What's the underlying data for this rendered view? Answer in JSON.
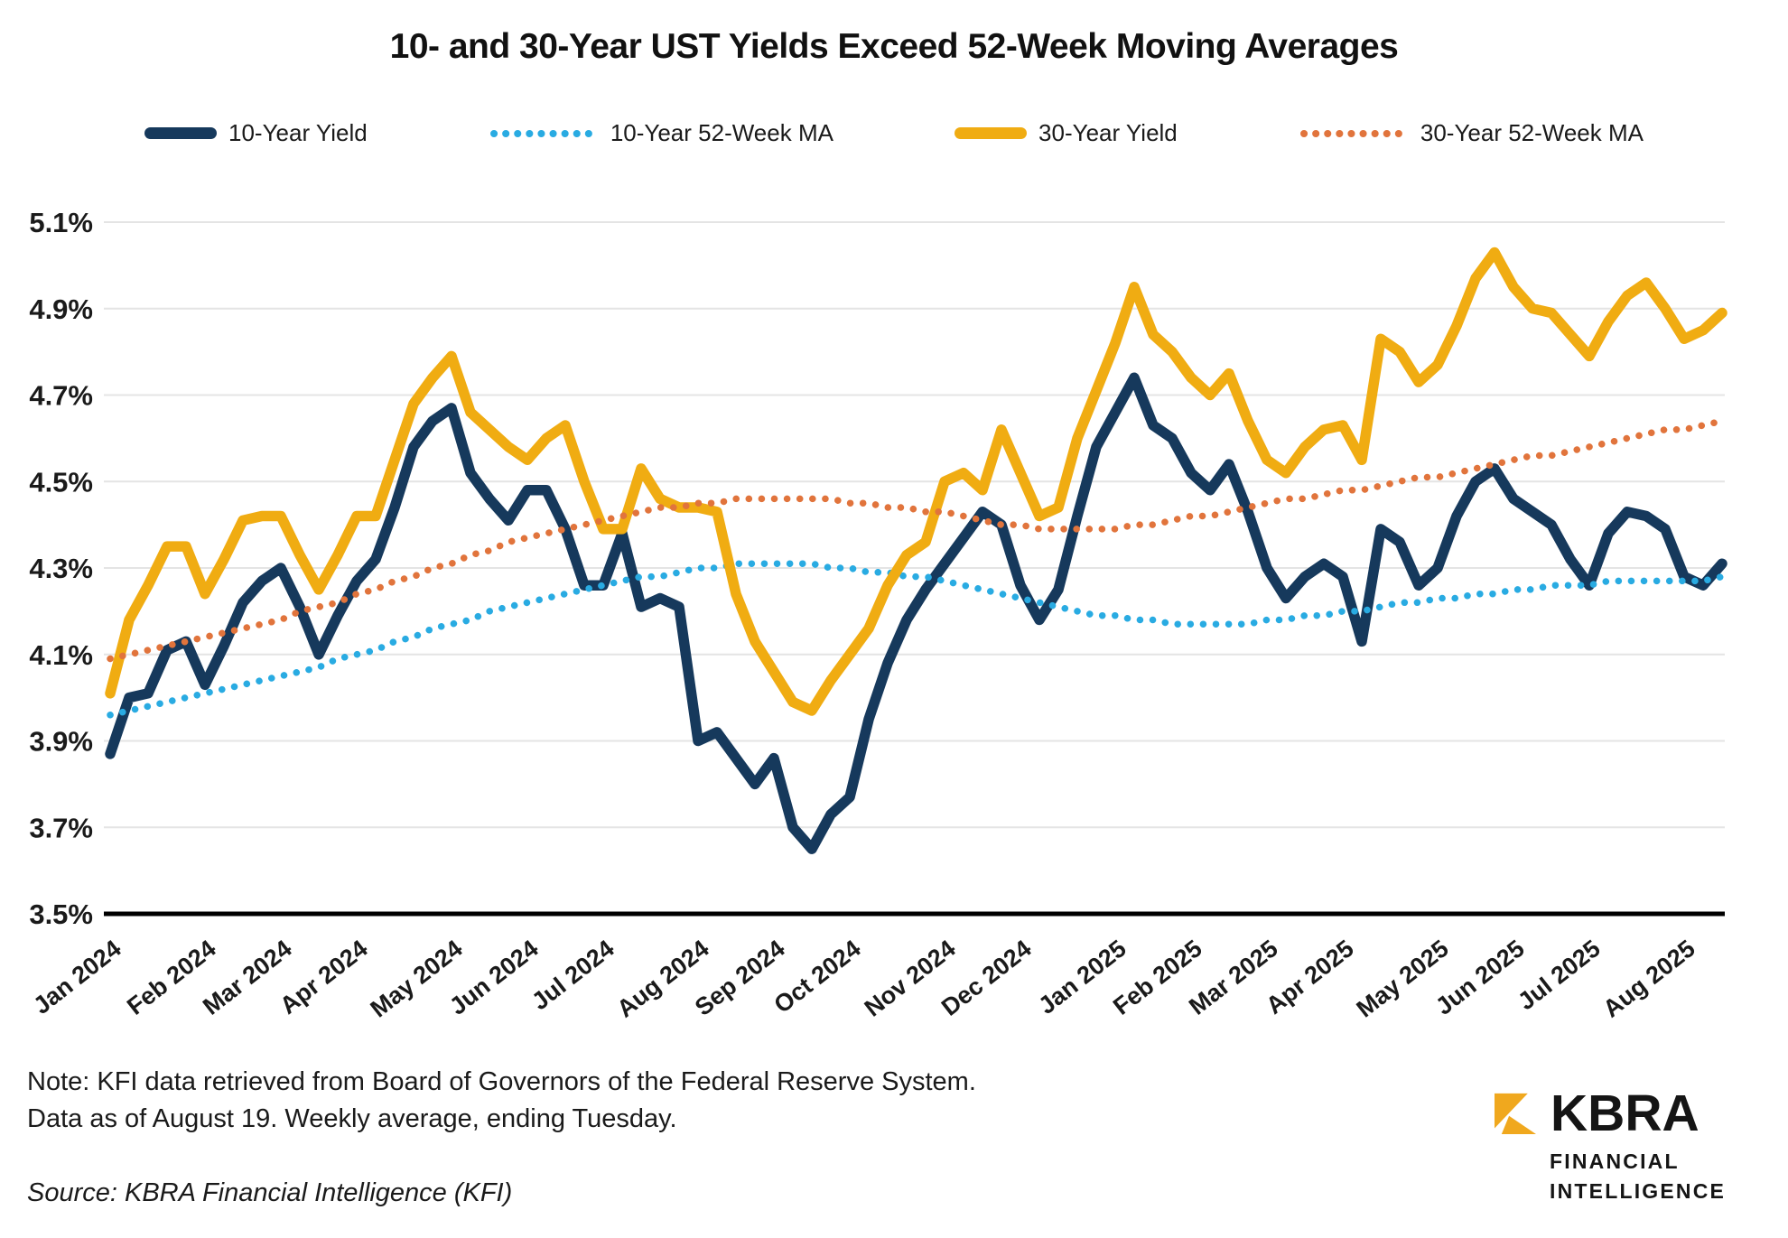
{
  "title": "10- and 30-Year UST Yields Exceed 52-Week Moving Averages",
  "footer": {
    "note_line1": "Note: KFI data retrieved from Board of Governors of the Federal Reserve System.",
    "note_line2": "Data as of August 19. Weekly average, ending Tuesday.",
    "source": "Source: KBRA Financial Intelligence (KFI)"
  },
  "logo": {
    "name": "KBRA",
    "line1": "FINANCIAL",
    "line2": "INTELLIGENCE",
    "color": "#F0A81E"
  },
  "colors": {
    "navy": "#16395C",
    "light_blue": "#29ABE2",
    "gold": "#F0AC12",
    "orange": "#E1743C",
    "gridline": "#E4E4E4",
    "axis": "#000000",
    "text": "#1a1a1a"
  },
  "chart_data": {
    "type": "line",
    "title": "10- and 30-Year UST Yields Exceed 52-Week Moving Averages",
    "unit": "%",
    "frequency": "weekly",
    "grid": "horizontal",
    "legend_position": "top",
    "ylim": [
      3.5,
      5.1
    ],
    "ytick_values": [
      5.1,
      4.9,
      4.7,
      4.5,
      4.3,
      4.1,
      3.9,
      3.7,
      3.5
    ],
    "yticks": [
      "5.1%",
      "4.9%",
      "4.7%",
      "4.5%",
      "4.3%",
      "4.1%",
      "3.9%",
      "3.7%",
      "3.5%"
    ],
    "x_labels": [
      "Jan 2024",
      "Feb 2024",
      "Mar 2024",
      "Apr 2024",
      "May 2024",
      "Jun 2024",
      "Jul 2024",
      "Aug 2024",
      "Sep 2024",
      "Oct 2024",
      "Nov 2024",
      "Dec 2024",
      "Jan 2025",
      "Feb 2025",
      "Mar 2025",
      "Apr 2025",
      "May 2025",
      "Jun 2025",
      "Jul 2025",
      "Aug 2025"
    ],
    "x_label_week_index": [
      0,
      5,
      9,
      13,
      18,
      22,
      26,
      31,
      35,
      39,
      44,
      48,
      53,
      57,
      61,
      65,
      70,
      74,
      78,
      83
    ],
    "series": [
      {
        "name": "10-Year Yield",
        "color": "#16395C",
        "style": "solid",
        "values": [
          3.87,
          4.0,
          4.01,
          4.11,
          4.13,
          4.03,
          4.12,
          4.22,
          4.27,
          4.3,
          4.21,
          4.1,
          4.19,
          4.27,
          4.32,
          4.44,
          4.58,
          4.64,
          4.67,
          4.52,
          4.46,
          4.41,
          4.48,
          4.48,
          4.39,
          4.26,
          4.26,
          4.38,
          4.21,
          4.23,
          4.21,
          3.9,
          3.92,
          3.86,
          3.8,
          3.86,
          3.7,
          3.65,
          3.73,
          3.77,
          3.95,
          4.08,
          4.18,
          4.25,
          4.31,
          4.37,
          4.43,
          4.4,
          4.26,
          4.18,
          4.25,
          4.42,
          4.58,
          4.66,
          4.74,
          4.63,
          4.6,
          4.52,
          4.48,
          4.54,
          4.43,
          4.3,
          4.23,
          4.28,
          4.31,
          4.28,
          4.13,
          4.39,
          4.36,
          4.26,
          4.3,
          4.42,
          4.5,
          4.53,
          4.46,
          4.43,
          4.4,
          4.32,
          4.26,
          4.38,
          4.43,
          4.42,
          4.39,
          4.28,
          4.26,
          4.31
        ]
      },
      {
        "name": "10-Year 52-Week MA",
        "color": "#29ABE2",
        "style": "dotted",
        "values": [
          3.96,
          3.97,
          3.98,
          3.99,
          4.0,
          4.01,
          4.02,
          4.03,
          4.04,
          4.05,
          4.06,
          4.07,
          4.09,
          4.1,
          4.11,
          4.13,
          4.14,
          4.16,
          4.17,
          4.18,
          4.2,
          4.21,
          4.22,
          4.23,
          4.24,
          4.25,
          4.26,
          4.27,
          4.28,
          4.28,
          4.29,
          4.3,
          4.3,
          4.31,
          4.31,
          4.31,
          4.31,
          4.31,
          4.3,
          4.3,
          4.29,
          4.29,
          4.28,
          4.28,
          4.27,
          4.26,
          4.25,
          4.24,
          4.23,
          4.22,
          4.21,
          4.2,
          4.19,
          4.19,
          4.18,
          4.18,
          4.17,
          4.17,
          4.17,
          4.17,
          4.17,
          4.18,
          4.18,
          4.19,
          4.19,
          4.2,
          4.2,
          4.21,
          4.22,
          4.22,
          4.23,
          4.23,
          4.24,
          4.24,
          4.25,
          4.25,
          4.26,
          4.26,
          4.26,
          4.27,
          4.27,
          4.27,
          4.27,
          4.27,
          4.27,
          4.28
        ]
      },
      {
        "name": "30-Year Yield",
        "color": "#F0AC12",
        "style": "solid",
        "values": [
          4.01,
          4.18,
          4.26,
          4.35,
          4.35,
          4.24,
          4.32,
          4.41,
          4.42,
          4.42,
          4.33,
          4.25,
          4.33,
          4.42,
          4.42,
          4.55,
          4.68,
          4.74,
          4.79,
          4.66,
          4.62,
          4.58,
          4.55,
          4.6,
          4.63,
          4.5,
          4.39,
          4.39,
          4.53,
          4.46,
          4.44,
          4.44,
          4.43,
          4.24,
          4.13,
          4.06,
          3.99,
          3.97,
          4.04,
          4.1,
          4.16,
          4.26,
          4.33,
          4.36,
          4.5,
          4.52,
          4.48,
          4.62,
          4.52,
          4.42,
          4.44,
          4.6,
          4.71,
          4.82,
          4.95,
          4.84,
          4.8,
          4.74,
          4.7,
          4.75,
          4.64,
          4.55,
          4.52,
          4.58,
          4.62,
          4.63,
          4.55,
          4.83,
          4.8,
          4.73,
          4.77,
          4.86,
          4.97,
          5.03,
          4.95,
          4.9,
          4.89,
          4.84,
          4.79,
          4.87,
          4.93,
          4.96,
          4.9,
          4.83,
          4.85,
          4.89
        ]
      },
      {
        "name": "30-Year 52-Week MA",
        "color": "#E1743C",
        "style": "dotted",
        "values": [
          4.09,
          4.1,
          4.11,
          4.12,
          4.13,
          4.14,
          4.15,
          4.16,
          4.17,
          4.18,
          4.2,
          4.21,
          4.22,
          4.24,
          4.25,
          4.27,
          4.28,
          4.3,
          4.31,
          4.33,
          4.34,
          4.36,
          4.37,
          4.38,
          4.39,
          4.4,
          4.41,
          4.42,
          4.43,
          4.44,
          4.44,
          4.45,
          4.45,
          4.46,
          4.46,
          4.46,
          4.46,
          4.46,
          4.46,
          4.45,
          4.45,
          4.44,
          4.44,
          4.43,
          4.43,
          4.42,
          4.41,
          4.4,
          4.4,
          4.39,
          4.39,
          4.39,
          4.39,
          4.39,
          4.4,
          4.4,
          4.41,
          4.42,
          4.42,
          4.43,
          4.44,
          4.45,
          4.46,
          4.46,
          4.47,
          4.48,
          4.48,
          4.49,
          4.5,
          4.51,
          4.51,
          4.52,
          4.53,
          4.54,
          4.55,
          4.56,
          4.56,
          4.57,
          4.58,
          4.59,
          4.6,
          4.61,
          4.62,
          4.62,
          4.63,
          4.64
        ]
      }
    ]
  }
}
